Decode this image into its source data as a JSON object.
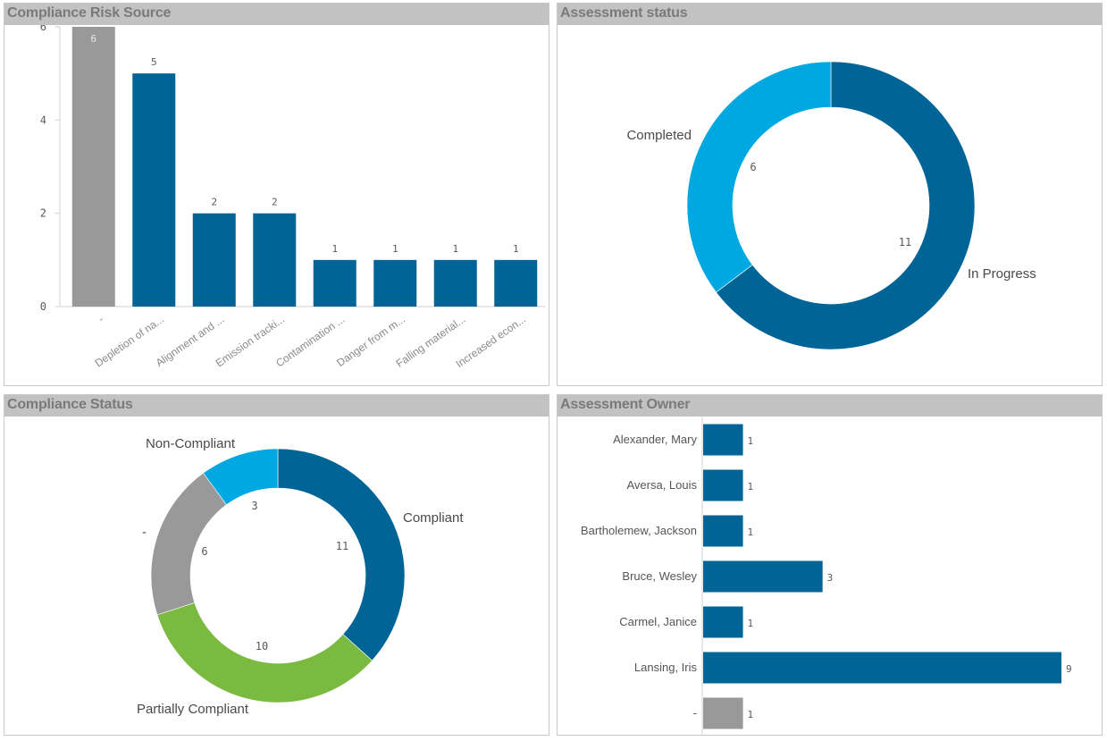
{
  "colors": {
    "primary": "#006496",
    "light": "#00a8e1",
    "gray": "#999999",
    "green": "#7aba41",
    "header_bg": "#c2c2c2",
    "title_text": "#7a7a7a"
  },
  "chart_data": [
    {
      "id": "risk-source",
      "type": "bar",
      "title": "Compliance Risk Source",
      "categories": [
        "-",
        "Depletion of na...",
        "Alignment and ...",
        "Emission tracki...",
        "Contamination ...",
        "Danger from m...",
        "Falling material...",
        "Increased econ..."
      ],
      "values": [
        6,
        5,
        2,
        2,
        1,
        1,
        1,
        1
      ],
      "bar_colors": [
        "gray",
        "primary",
        "primary",
        "primary",
        "primary",
        "primary",
        "primary",
        "primary"
      ],
      "yticks": [
        "0",
        "2",
        "4",
        "6"
      ],
      "ylim": [
        0,
        6
      ],
      "xlabel": "",
      "ylabel": ""
    },
    {
      "id": "assessment-status",
      "type": "pie",
      "title": "Assessment status",
      "donut": true,
      "slices": [
        {
          "label": "In Progress",
          "value": 11,
          "display": "11",
          "color": "primary"
        },
        {
          "label": "Completed",
          "value": 6,
          "display": "6",
          "color": "light"
        }
      ]
    },
    {
      "id": "compliance-status",
      "type": "pie",
      "title": "Compliance Status",
      "donut": true,
      "slices": [
        {
          "label": "Compliant",
          "value": 11,
          "display": "11",
          "color": "primary"
        },
        {
          "label": "Partially Compliant",
          "value": 10,
          "display": "10",
          "color": "green"
        },
        {
          "label": "-",
          "value": 6,
          "display": "6",
          "color": "gray"
        },
        {
          "label": "Non-Compliant",
          "value": 3,
          "display": "3",
          "color": "light"
        }
      ]
    },
    {
      "id": "assessment-owner",
      "type": "bar",
      "orientation": "horizontal",
      "title": "Assessment Owner",
      "categories": [
        "Alexander, Mary",
        "Aversa, Louis",
        "Bartholemew, Jackson",
        "Bruce, Wesley",
        "Carmel, Janice",
        "Lansing, Iris",
        "-"
      ],
      "values": [
        1,
        1,
        1,
        3,
        1,
        9,
        1
      ],
      "bar_colors": [
        "primary",
        "primary",
        "primary",
        "primary",
        "primary",
        "primary",
        "gray"
      ],
      "xlim": [
        0,
        9
      ]
    }
  ]
}
